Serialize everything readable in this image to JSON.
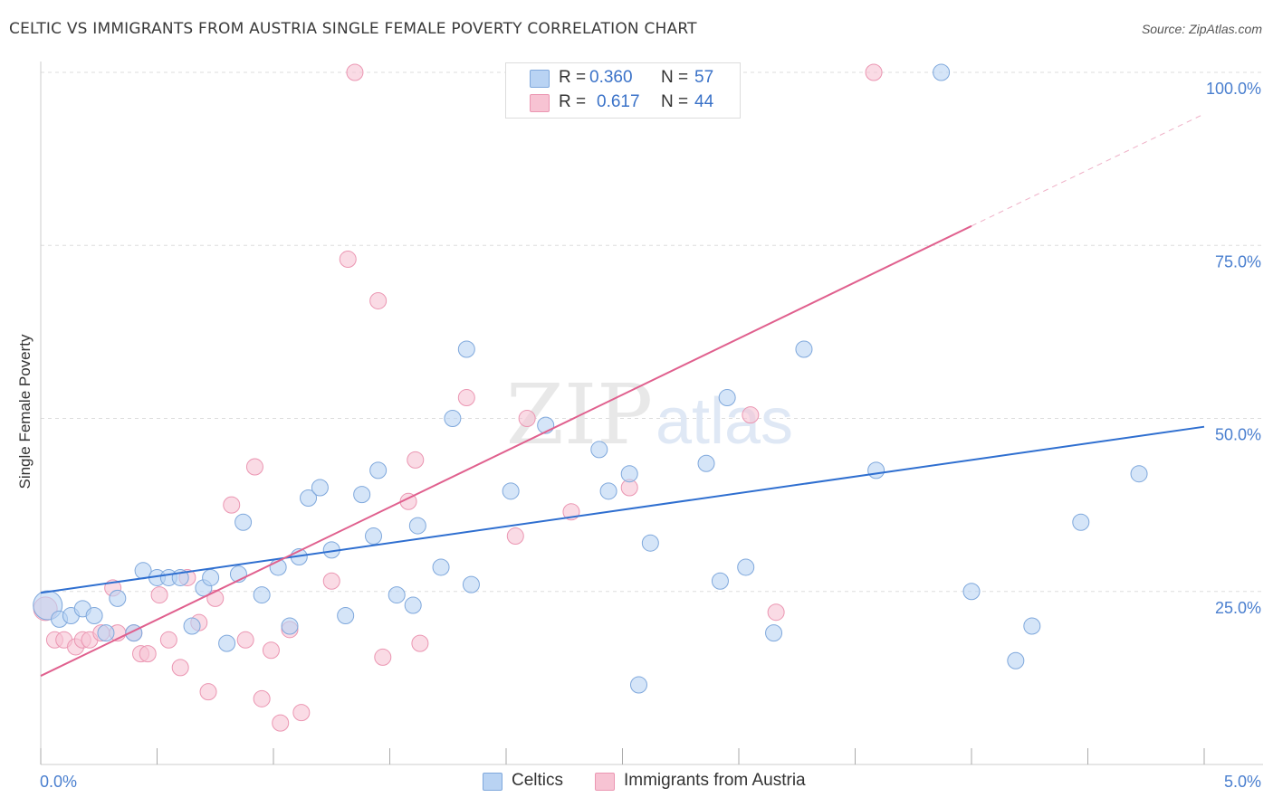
{
  "header": {
    "title": "CELTIC VS IMMIGRANTS FROM AUSTRIA SINGLE FEMALE POVERTY CORRELATION CHART",
    "source": "Source: ZipAtlas.com"
  },
  "watermark": {
    "zip": "ZIP",
    "atlas": "atlas"
  },
  "stats": {
    "celtics": {
      "r_label": "R =",
      "r_value": "0.360",
      "n_label": "N =",
      "n_value": "57"
    },
    "austria": {
      "r_label": "R =",
      "r_value": "0.617",
      "n_label": "N =",
      "n_value": "44"
    }
  },
  "legend": {
    "celtics": "Celtics",
    "austria": "Immigrants from Austria"
  },
  "colors": {
    "celtics_fill": "#b9d3f3",
    "celtics_stroke": "#7fa8dc",
    "celtics_line": "#2f6fd0",
    "austria_fill": "#f7c3d3",
    "austria_stroke": "#eb96b2",
    "austria_line": "#e0608e",
    "axis_text": "#4a7fcf",
    "grid": "#dddddd"
  },
  "chart_data": {
    "type": "scatter",
    "title": "CELTIC VS IMMIGRANTS FROM AUSTRIA SINGLE FEMALE POVERTY CORRELATION CHART",
    "xlabel": "",
    "ylabel": "Single Female Poverty",
    "xlim": [
      0,
      5
    ],
    "ylim": [
      0,
      100
    ],
    "x_tick_labels": [
      "0.0%",
      "5.0%"
    ],
    "y_tick_labels": [
      "25.0%",
      "50.0%",
      "75.0%",
      "100.0%"
    ],
    "y_ticks": [
      25,
      50,
      75,
      100
    ],
    "grid": true,
    "series": [
      {
        "name": "Celtics",
        "points": [
          [
            0.03,
            23.0
          ],
          [
            0.08,
            21.0
          ],
          [
            0.13,
            21.5
          ],
          [
            0.18,
            22.5
          ],
          [
            0.23,
            21.5
          ],
          [
            0.28,
            19.0
          ],
          [
            0.33,
            24.0
          ],
          [
            0.4,
            19.0
          ],
          [
            0.44,
            28.0
          ],
          [
            0.5,
            27.0
          ],
          [
            0.55,
            27.0
          ],
          [
            0.6,
            27.0
          ],
          [
            0.65,
            20.0
          ],
          [
            0.7,
            25.5
          ],
          [
            0.73,
            27.0
          ],
          [
            0.8,
            17.5
          ],
          [
            0.85,
            27.5
          ],
          [
            0.87,
            35.0
          ],
          [
            0.95,
            24.5
          ],
          [
            1.02,
            28.5
          ],
          [
            1.07,
            20.0
          ],
          [
            1.11,
            30.0
          ],
          [
            1.15,
            38.5
          ],
          [
            1.2,
            40.0
          ],
          [
            1.25,
            31.0
          ],
          [
            1.31,
            21.5
          ],
          [
            1.38,
            39.0
          ],
          [
            1.43,
            33.0
          ],
          [
            1.45,
            42.5
          ],
          [
            1.53,
            24.5
          ],
          [
            1.6,
            23.0
          ],
          [
            1.62,
            34.5
          ],
          [
            1.72,
            28.5
          ],
          [
            1.77,
            50.0
          ],
          [
            1.83,
            60.0
          ],
          [
            1.85,
            26.0
          ],
          [
            2.02,
            39.5
          ],
          [
            2.17,
            49.0
          ],
          [
            2.35,
            100.0
          ],
          [
            2.4,
            45.5
          ],
          [
            2.44,
            39.5
          ],
          [
            2.53,
            42.0
          ],
          [
            2.57,
            11.5
          ],
          [
            2.62,
            32.0
          ],
          [
            2.86,
            43.5
          ],
          [
            2.92,
            26.5
          ],
          [
            2.95,
            53.0
          ],
          [
            3.03,
            28.5
          ],
          [
            3.15,
            19.0
          ],
          [
            3.28,
            60.0
          ],
          [
            3.59,
            42.5
          ],
          [
            3.87,
            100.0
          ],
          [
            4.0,
            25.0
          ],
          [
            4.19,
            15.0
          ],
          [
            4.26,
            20.0
          ],
          [
            4.47,
            35.0
          ],
          [
            4.72,
            42.0
          ]
        ]
      },
      {
        "name": "Immigrants from Austria",
        "points": [
          [
            0.02,
            22.5
          ],
          [
            0.06,
            18.0
          ],
          [
            0.1,
            18.0
          ],
          [
            0.15,
            17.0
          ],
          [
            0.18,
            18.0
          ],
          [
            0.21,
            18.0
          ],
          [
            0.26,
            19.0
          ],
          [
            0.31,
            25.5
          ],
          [
            0.33,
            19.0
          ],
          [
            0.4,
            19.0
          ],
          [
            0.43,
            16.0
          ],
          [
            0.46,
            16.0
          ],
          [
            0.51,
            24.5
          ],
          [
            0.55,
            18.0
          ],
          [
            0.6,
            14.0
          ],
          [
            0.63,
            27.0
          ],
          [
            0.68,
            20.5
          ],
          [
            0.72,
            10.5
          ],
          [
            0.75,
            24.0
          ],
          [
            0.82,
            37.5
          ],
          [
            0.88,
            18.0
          ],
          [
            0.92,
            43.0
          ],
          [
            0.95,
            9.5
          ],
          [
            0.99,
            16.5
          ],
          [
            1.03,
            6.0
          ],
          [
            1.07,
            19.5
          ],
          [
            1.12,
            7.5
          ],
          [
            1.25,
            26.5
          ],
          [
            1.32,
            73.0
          ],
          [
            1.35,
            100.0
          ],
          [
            1.45,
            67.0
          ],
          [
            1.47,
            15.5
          ],
          [
            1.58,
            38.0
          ],
          [
            1.61,
            44.0
          ],
          [
            1.63,
            17.5
          ],
          [
            1.83,
            53.0
          ],
          [
            2.04,
            33.0
          ],
          [
            2.09,
            50.0
          ],
          [
            2.28,
            36.5
          ],
          [
            2.53,
            40.0
          ],
          [
            2.96,
            100.0
          ],
          [
            3.05,
            50.5
          ],
          [
            3.16,
            22.0
          ],
          [
            3.58,
            100.0
          ]
        ]
      }
    ],
    "trendlines": [
      {
        "series": "Celtics",
        "x0": 0,
        "y0": 24.8,
        "x1": 5,
        "y1": 48.8
      },
      {
        "series": "Immigrants from Austria",
        "x0": 0,
        "y0": 12.8,
        "x1": 4.0,
        "y1": 77.8,
        "x1_dashed": 5.0,
        "y1_dashed": 94.0
      }
    ]
  }
}
